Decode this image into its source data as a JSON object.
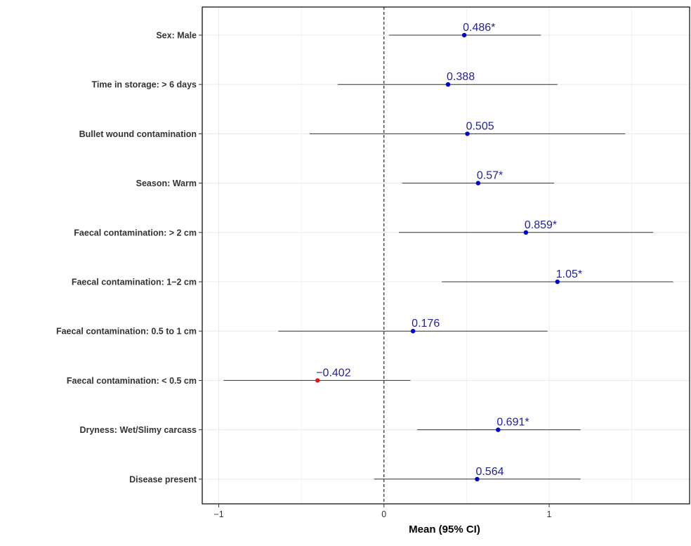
{
  "chart_data": {
    "type": "forest",
    "title": "",
    "xlabel": "Mean (95% CI)",
    "ylabel": "",
    "xlim": [
      -1.1,
      1.85
    ],
    "x_ticks": [
      -1,
      0,
      1
    ],
    "x_tick_labels": [
      "−1",
      "0",
      "1"
    ],
    "reference_line": 0,
    "grid": true,
    "colors": {
      "positive": "#0000cc",
      "negative": "#ee1111",
      "label": "#222299",
      "ci": "#333333"
    },
    "rows": [
      {
        "label": "Sex: Male",
        "mean": 0.486,
        "lower": 0.03,
        "upper": 0.95,
        "value_label": "0.486*",
        "color": "positive"
      },
      {
        "label": "Time in storage: > 6 days",
        "mean": 0.388,
        "lower": -0.28,
        "upper": 1.05,
        "value_label": "0.388",
        "color": "positive"
      },
      {
        "label": "Bullet wound contamination",
        "mean": 0.505,
        "lower": -0.45,
        "upper": 1.46,
        "value_label": "0.505",
        "color": "positive"
      },
      {
        "label": "Season: Warm",
        "mean": 0.57,
        "lower": 0.11,
        "upper": 1.03,
        "value_label": "0.57*",
        "color": "positive"
      },
      {
        "label": "Faecal contamination: > 2 cm",
        "mean": 0.859,
        "lower": 0.09,
        "upper": 1.63,
        "value_label": "0.859*",
        "color": "positive"
      },
      {
        "label": "Faecal contamination: 1−2 cm",
        "mean": 1.05,
        "lower": 0.35,
        "upper": 1.75,
        "value_label": "1.05*",
        "color": "positive"
      },
      {
        "label": "Faecal contamination: 0.5 to 1 cm",
        "mean": 0.176,
        "lower": -0.64,
        "upper": 0.99,
        "value_label": "0.176",
        "color": "positive"
      },
      {
        "label": "Faecal contamination: < 0.5 cm",
        "mean": -0.402,
        "lower": -0.97,
        "upper": 0.16,
        "value_label": "−0.402",
        "color": "negative"
      },
      {
        "label": "Dryness: Wet/Slimy carcass",
        "mean": 0.691,
        "lower": 0.2,
        "upper": 1.19,
        "value_label": "0.691*",
        "color": "positive"
      },
      {
        "label": "Disease present",
        "mean": 0.564,
        "lower": -0.06,
        "upper": 1.19,
        "value_label": "0.564",
        "color": "positive"
      }
    ]
  }
}
